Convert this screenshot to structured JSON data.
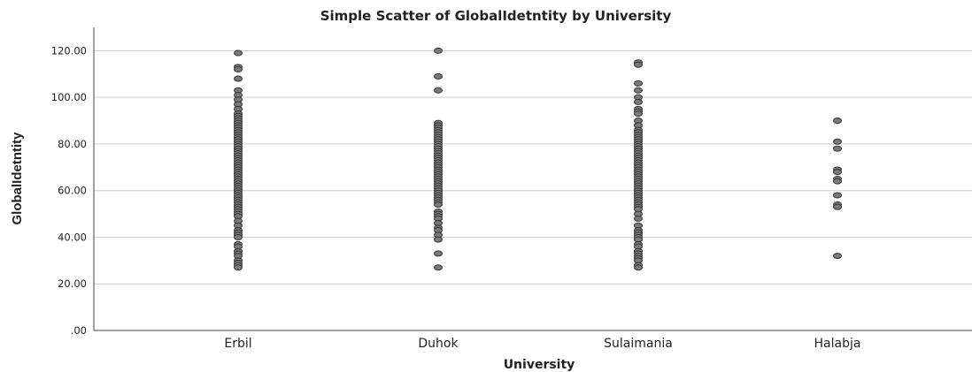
{
  "chart_data": {
    "type": "scatter",
    "title": "Simple Scatter of GlobalIdetntity by University",
    "xlabel": "University",
    "ylabel": "GlobalIdetntity",
    "categories": [
      "Erbil",
      "Duhok",
      "Sulaimania",
      "Halabja"
    ],
    "ylim": [
      0,
      130
    ],
    "yticks": [
      0,
      20,
      40,
      60,
      80,
      100,
      120
    ],
    "ytick_labels": [
      ".00",
      "20.00",
      "40.00",
      "60.00",
      "80.00",
      "100.00",
      "120.00"
    ],
    "grid": true,
    "legend": "none",
    "point_color": "#7a7a7a",
    "series": [
      {
        "category": "Erbil",
        "values": [
          119,
          113,
          112,
          108,
          103,
          101,
          99,
          97,
          95,
          93,
          92,
          91,
          90,
          89,
          88,
          87,
          86,
          85,
          84,
          83,
          82,
          81,
          80,
          79,
          78,
          77,
          76,
          75,
          74,
          73,
          72,
          71,
          70,
          69,
          68,
          67,
          66,
          65,
          64,
          63,
          62,
          61,
          60,
          59,
          58,
          57,
          56,
          55,
          54,
          53,
          52,
          51,
          50,
          49,
          47,
          45,
          43,
          42,
          41,
          40,
          37,
          36,
          34,
          33,
          32,
          30,
          29,
          28,
          27
        ]
      },
      {
        "category": "Duhok",
        "values": [
          120,
          109,
          103,
          89,
          88,
          87,
          86,
          85,
          84,
          83,
          82,
          81,
          80,
          79,
          78,
          77,
          76,
          75,
          74,
          73,
          72,
          71,
          70,
          69,
          68,
          67,
          66,
          65,
          64,
          63,
          62,
          61,
          60,
          59,
          58,
          57,
          56,
          55,
          54,
          51,
          50,
          49,
          48,
          46,
          44,
          43,
          41,
          39,
          33,
          27
        ]
      },
      {
        "category": "Sulaimania",
        "values": [
          115,
          114,
          106,
          103,
          100,
          98,
          95,
          94,
          93,
          90,
          88,
          86,
          85,
          84,
          83,
          82,
          81,
          80,
          79,
          78,
          77,
          76,
          75,
          74,
          73,
          72,
          71,
          70,
          69,
          68,
          67,
          66,
          65,
          64,
          63,
          62,
          61,
          60,
          59,
          58,
          57,
          56,
          55,
          54,
          53,
          52,
          50,
          48,
          45,
          43,
          42,
          41,
          40,
          39,
          37,
          36,
          34,
          33,
          32,
          31,
          30,
          28,
          27
        ]
      },
      {
        "category": "Halabja",
        "values": [
          90,
          81,
          78,
          69,
          68,
          65,
          64,
          58,
          54,
          53,
          32
        ]
      }
    ]
  }
}
